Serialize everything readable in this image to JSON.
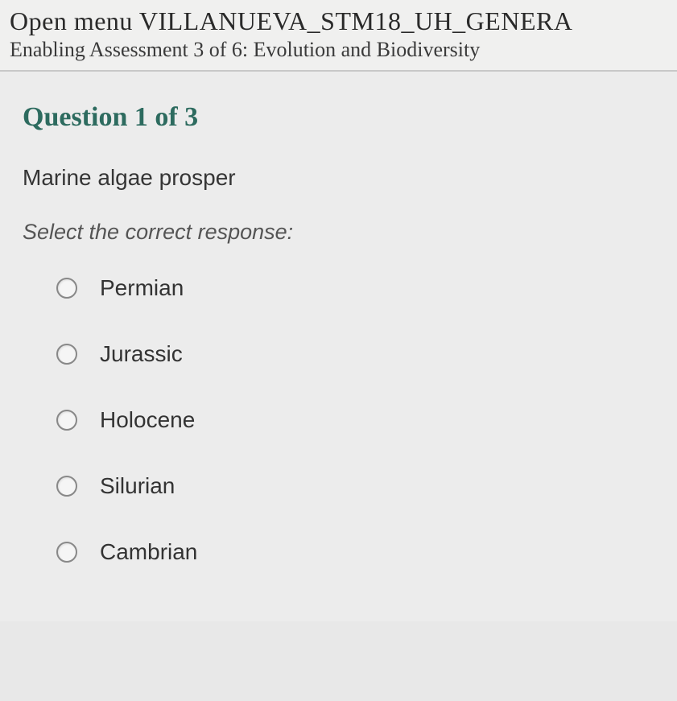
{
  "header": {
    "menu_text": "Open menu VILLANUEVA_STM18_UH_GENERA",
    "subtitle": "Enabling Assessment 3 of 6: Evolution and Biodiversity"
  },
  "question": {
    "title": "Question 1 of 3",
    "text": "Marine algae prosper",
    "instruction": "Select the correct response:",
    "options": [
      {
        "label": "Permian"
      },
      {
        "label": "Jurassic"
      },
      {
        "label": "Holocene"
      },
      {
        "label": "Silurian"
      },
      {
        "label": "Cambrian"
      }
    ]
  },
  "colors": {
    "title_color": "#2d6b5f",
    "text_color": "#353535",
    "background": "#ececec"
  }
}
